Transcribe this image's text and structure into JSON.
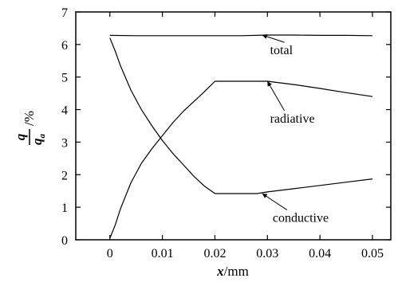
{
  "chart_data": {
    "type": "line",
    "xlabel": {
      "var": "x",
      "unit": "/mm"
    },
    "ylabel": {
      "numerator": "q",
      "denominator": "q",
      "subscript": "a",
      "unit": "/%"
    },
    "xlim": [
      -0.0065,
      0.0535
    ],
    "ylim": [
      0,
      7
    ],
    "xticks": [
      "0",
      "0.01",
      "0.02",
      "0.03",
      "0.04",
      "0.05"
    ],
    "xtick_values": [
      0,
      0.01,
      0.02,
      0.03,
      0.04,
      0.05
    ],
    "yticks": [
      "0",
      "1",
      "2",
      "3",
      "4",
      "5",
      "6",
      "7"
    ],
    "ytick_values": [
      0,
      1,
      2,
      3,
      4,
      5,
      6,
      7
    ],
    "grid": false,
    "series": [
      {
        "name": "total",
        "x": [
          0,
          0.005,
          0.01,
          0.015,
          0.02,
          0.025,
          0.03,
          0.035,
          0.04,
          0.045,
          0.05
        ],
        "y": [
          6.28,
          6.27,
          6.27,
          6.27,
          6.27,
          6.27,
          6.29,
          6.29,
          6.28,
          6.28,
          6.27
        ]
      },
      {
        "name": "radiative",
        "x": [
          0,
          0.001,
          0.002,
          0.004,
          0.006,
          0.008,
          0.01,
          0.012,
          0.014,
          0.016,
          0.018,
          0.02,
          0.025,
          0.03,
          0.035,
          0.04,
          0.045,
          0.05
        ],
        "y": [
          0.05,
          0.45,
          0.95,
          1.75,
          2.35,
          2.8,
          3.2,
          3.6,
          3.95,
          4.25,
          4.55,
          4.87,
          4.87,
          4.87,
          4.77,
          4.65,
          4.52,
          4.4
        ]
      },
      {
        "name": "conductive",
        "x": [
          0,
          0.001,
          0.002,
          0.004,
          0.006,
          0.008,
          0.01,
          0.012,
          0.014,
          0.016,
          0.018,
          0.02,
          0.025,
          0.028,
          0.03,
          0.035,
          0.04,
          0.045,
          0.05
        ],
        "y": [
          6.2,
          5.8,
          5.35,
          4.6,
          4.0,
          3.5,
          3.05,
          2.65,
          2.3,
          1.95,
          1.65,
          1.42,
          1.42,
          1.42,
          1.47,
          1.57,
          1.67,
          1.77,
          1.87
        ]
      }
    ],
    "annotations": [
      {
        "text": "total",
        "series": "total",
        "arrow_to": [
          0.029,
          6.29
        ],
        "text_at": [
          0.0305,
          5.7
        ]
      },
      {
        "text": "radiative",
        "series": "radiative",
        "arrow_to": [
          0.03,
          4.87
        ],
        "text_at": [
          0.0305,
          3.6
        ]
      },
      {
        "text": "conductive",
        "series": "conductive",
        "arrow_to": [
          0.029,
          1.42
        ],
        "text_at": [
          0.031,
          0.55
        ]
      }
    ]
  }
}
